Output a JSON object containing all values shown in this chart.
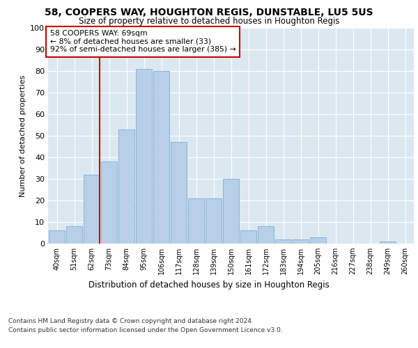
{
  "title1": "58, COOPERS WAY, HOUGHTON REGIS, DUNSTABLE, LU5 5US",
  "title2": "Size of property relative to detached houses in Houghton Regis",
  "xlabel": "Distribution of detached houses by size in Houghton Regis",
  "ylabel": "Number of detached properties",
  "categories": [
    "40sqm",
    "51sqm",
    "62sqm",
    "73sqm",
    "84sqm",
    "95sqm",
    "106sqm",
    "117sqm",
    "128sqm",
    "139sqm",
    "150sqm",
    "161sqm",
    "172sqm",
    "183sqm",
    "194sqm",
    "205sqm",
    "216sqm",
    "227sqm",
    "238sqm",
    "249sqm",
    "260sqm"
  ],
  "values": [
    6,
    8,
    32,
    38,
    53,
    81,
    80,
    47,
    21,
    21,
    30,
    6,
    8,
    2,
    2,
    3,
    0,
    0,
    0,
    1,
    0
  ],
  "bar_color": "#b8cfe8",
  "bar_edge_color": "#7aafd4",
  "vline_color": "#cc0000",
  "annotation_text": "58 COOPERS WAY: 69sqm\n← 8% of detached houses are smaller (33)\n92% of semi-detached houses are larger (385) →",
  "annotation_box_color": "#ffffff",
  "annotation_border_color": "#cc0000",
  "ylim": [
    0,
    100
  ],
  "yticks": [
    0,
    10,
    20,
    30,
    40,
    50,
    60,
    70,
    80,
    90,
    100
  ],
  "background_color": "#dce8f0",
  "footer1": "Contains HM Land Registry data © Crown copyright and database right 2024.",
  "footer2": "Contains public sector information licensed under the Open Government Licence v3.0."
}
